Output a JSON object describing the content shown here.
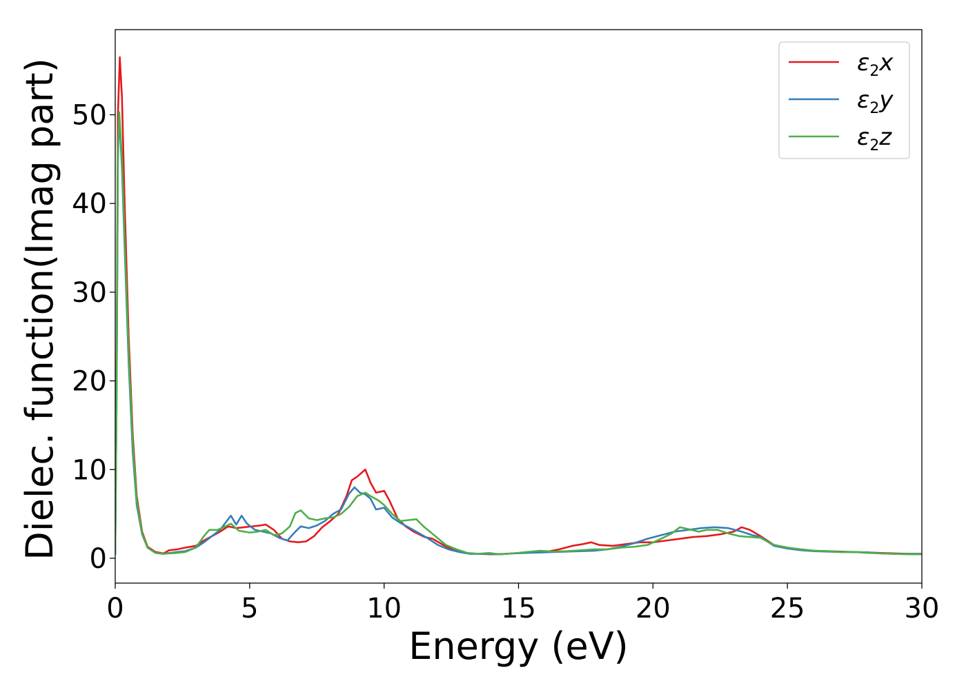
{
  "chart_data": {
    "type": "line",
    "title": "",
    "xlabel": "Energy (eV)",
    "ylabel": "Dielec. function(Imag part)",
    "xlim": [
      0,
      30
    ],
    "ylim": [
      -2.8,
      59.6
    ],
    "xticks": [
      0,
      5,
      10,
      15,
      20,
      25,
      30
    ],
    "yticks": [
      0,
      10,
      20,
      30,
      40,
      50
    ],
    "grid": false,
    "legend_position": "top-right",
    "colors": {
      "x": "#e41a1c",
      "y": "#377eb8",
      "z": "#4daf4a"
    },
    "legend": [
      {
        "key": "x",
        "symbol": "ε",
        "sub": "2",
        "comp": "x"
      },
      {
        "key": "y",
        "symbol": "ε",
        "sub": "2",
        "comp": "y"
      },
      {
        "key": "z",
        "symbol": "ε",
        "sub": "2",
        "comp": "z"
      }
    ],
    "series": [
      {
        "name": "ε2x",
        "key": "x",
        "points": [
          [
            0,
            0.5
          ],
          [
            0.05,
            20
          ],
          [
            0.1,
            50
          ],
          [
            0.17,
            56.5
          ],
          [
            0.25,
            52
          ],
          [
            0.35,
            40
          ],
          [
            0.5,
            25
          ],
          [
            0.65,
            14
          ],
          [
            0.8,
            7
          ],
          [
            1.0,
            3
          ],
          [
            1.2,
            1.3
          ],
          [
            1.5,
            0.7
          ],
          [
            1.8,
            0.55
          ],
          [
            2.0,
            0.9
          ],
          [
            2.3,
            1.0
          ],
          [
            2.6,
            1.2
          ],
          [
            3.0,
            1.4
          ],
          [
            3.3,
            2.0
          ],
          [
            3.6,
            2.5
          ],
          [
            3.9,
            3.0
          ],
          [
            4.2,
            3.6
          ],
          [
            4.5,
            3.4
          ],
          [
            4.8,
            3.5
          ],
          [
            5.1,
            3.6
          ],
          [
            5.4,
            3.7
          ],
          [
            5.6,
            3.8
          ],
          [
            5.9,
            3.2
          ],
          [
            6.2,
            2.2
          ],
          [
            6.5,
            1.9
          ],
          [
            6.8,
            1.8
          ],
          [
            7.1,
            1.9
          ],
          [
            7.4,
            2.5
          ],
          [
            7.7,
            3.5
          ],
          [
            8.0,
            4.2
          ],
          [
            8.3,
            5.0
          ],
          [
            8.6,
            7.0
          ],
          [
            8.8,
            8.8
          ],
          [
            9.0,
            9.2
          ],
          [
            9.3,
            10.0
          ],
          [
            9.5,
            8.5
          ],
          [
            9.7,
            7.4
          ],
          [
            10.0,
            7.6
          ],
          [
            10.2,
            6.5
          ],
          [
            10.5,
            4.5
          ],
          [
            10.8,
            3.6
          ],
          [
            11.1,
            3.0
          ],
          [
            11.5,
            2.4
          ],
          [
            11.8,
            2.2
          ],
          [
            12.2,
            1.5
          ],
          [
            12.6,
            0.9
          ],
          [
            13.0,
            0.6
          ],
          [
            13.5,
            0.5
          ],
          [
            14.0,
            0.45
          ],
          [
            14.5,
            0.5
          ],
          [
            15.0,
            0.6
          ],
          [
            15.5,
            0.65
          ],
          [
            16.0,
            0.7
          ],
          [
            16.5,
            1.0
          ],
          [
            17.0,
            1.4
          ],
          [
            17.4,
            1.6
          ],
          [
            17.7,
            1.8
          ],
          [
            18.0,
            1.5
          ],
          [
            18.5,
            1.4
          ],
          [
            19.0,
            1.6
          ],
          [
            19.5,
            1.8
          ],
          [
            20.0,
            1.8
          ],
          [
            20.5,
            2.0
          ],
          [
            21.0,
            2.2
          ],
          [
            21.5,
            2.4
          ],
          [
            22.0,
            2.5
          ],
          [
            22.5,
            2.7
          ],
          [
            23.0,
            3.0
          ],
          [
            23.3,
            3.5
          ],
          [
            23.6,
            3.2
          ],
          [
            24.0,
            2.5
          ],
          [
            24.5,
            1.5
          ],
          [
            25.0,
            1.2
          ],
          [
            25.5,
            1.0
          ],
          [
            26.0,
            0.85
          ],
          [
            26.5,
            0.8
          ],
          [
            27.0,
            0.75
          ],
          [
            27.5,
            0.7
          ],
          [
            28.0,
            0.65
          ],
          [
            28.5,
            0.6
          ],
          [
            29.0,
            0.55
          ],
          [
            29.5,
            0.5
          ],
          [
            30.0,
            0.5
          ]
        ]
      },
      {
        "name": "ε2y",
        "key": "y",
        "points": [
          [
            0,
            0.5
          ],
          [
            0.05,
            18
          ],
          [
            0.1,
            45
          ],
          [
            0.15,
            50
          ],
          [
            0.25,
            44
          ],
          [
            0.35,
            35
          ],
          [
            0.5,
            22
          ],
          [
            0.65,
            12
          ],
          [
            0.8,
            6
          ],
          [
            1.0,
            2.7
          ],
          [
            1.2,
            1.2
          ],
          [
            1.5,
            0.6
          ],
          [
            1.8,
            0.5
          ],
          [
            2.0,
            0.6
          ],
          [
            2.3,
            0.7
          ],
          [
            2.6,
            0.8
          ],
          [
            3.0,
            1.2
          ],
          [
            3.3,
            1.8
          ],
          [
            3.6,
            2.5
          ],
          [
            3.9,
            3.2
          ],
          [
            4.1,
            4.0
          ],
          [
            4.3,
            4.8
          ],
          [
            4.5,
            3.8
          ],
          [
            4.7,
            4.8
          ],
          [
            4.9,
            3.9
          ],
          [
            5.2,
            3.2
          ],
          [
            5.5,
            3.0
          ],
          [
            5.8,
            2.8
          ],
          [
            6.1,
            2.3
          ],
          [
            6.4,
            2.0
          ],
          [
            6.7,
            3.0
          ],
          [
            6.9,
            3.6
          ],
          [
            7.2,
            3.4
          ],
          [
            7.5,
            3.7
          ],
          [
            7.8,
            4.2
          ],
          [
            8.1,
            5.0
          ],
          [
            8.4,
            5.5
          ],
          [
            8.7,
            7.3
          ],
          [
            8.9,
            8.0
          ],
          [
            9.1,
            7.4
          ],
          [
            9.3,
            7.2
          ],
          [
            9.5,
            6.7
          ],
          [
            9.7,
            5.5
          ],
          [
            10.0,
            5.7
          ],
          [
            10.3,
            4.6
          ],
          [
            10.6,
            4.0
          ],
          [
            10.9,
            3.5
          ],
          [
            11.2,
            3.0
          ],
          [
            11.6,
            2.3
          ],
          [
            12.0,
            1.5
          ],
          [
            12.4,
            1.0
          ],
          [
            12.8,
            0.7
          ],
          [
            13.2,
            0.5
          ],
          [
            13.8,
            0.5
          ],
          [
            14.3,
            0.45
          ],
          [
            14.8,
            0.55
          ],
          [
            15.3,
            0.6
          ],
          [
            15.8,
            0.65
          ],
          [
            16.3,
            0.7
          ],
          [
            16.8,
            0.75
          ],
          [
            17.3,
            0.8
          ],
          [
            17.8,
            0.85
          ],
          [
            18.3,
            1.0
          ],
          [
            18.8,
            1.3
          ],
          [
            19.3,
            1.7
          ],
          [
            19.8,
            2.2
          ],
          [
            20.3,
            2.6
          ],
          [
            20.8,
            3.0
          ],
          [
            21.3,
            3.2
          ],
          [
            21.8,
            3.4
          ],
          [
            22.3,
            3.5
          ],
          [
            22.8,
            3.4
          ],
          [
            23.3,
            3.0
          ],
          [
            23.7,
            2.6
          ],
          [
            24.0,
            2.4
          ],
          [
            24.5,
            1.4
          ],
          [
            25.0,
            1.1
          ],
          [
            25.5,
            0.9
          ],
          [
            26.0,
            0.8
          ],
          [
            26.5,
            0.75
          ],
          [
            27.0,
            0.7
          ],
          [
            27.5,
            0.7
          ],
          [
            28.0,
            0.65
          ],
          [
            28.5,
            0.55
          ],
          [
            29.0,
            0.5
          ],
          [
            29.5,
            0.5
          ],
          [
            30.0,
            0.5
          ]
        ]
      },
      {
        "name": "ε2z",
        "key": "z",
        "points": [
          [
            0,
            0.5
          ],
          [
            0.05,
            18
          ],
          [
            0.1,
            46
          ],
          [
            0.15,
            50.3
          ],
          [
            0.25,
            45
          ],
          [
            0.35,
            36
          ],
          [
            0.5,
            23
          ],
          [
            0.65,
            13
          ],
          [
            0.8,
            6.5
          ],
          [
            1.0,
            2.8
          ],
          [
            1.2,
            1.2
          ],
          [
            1.5,
            0.6
          ],
          [
            1.8,
            0.5
          ],
          [
            2.0,
            0.55
          ],
          [
            2.3,
            0.6
          ],
          [
            2.6,
            0.7
          ],
          [
            3.0,
            1.2
          ],
          [
            3.3,
            2.5
          ],
          [
            3.5,
            3.2
          ],
          [
            3.8,
            3.2
          ],
          [
            4.1,
            3.6
          ],
          [
            4.3,
            3.9
          ],
          [
            4.6,
            3.1
          ],
          [
            5.0,
            2.9
          ],
          [
            5.3,
            3.0
          ],
          [
            5.6,
            3.2
          ],
          [
            5.9,
            2.6
          ],
          [
            6.2,
            2.8
          ],
          [
            6.5,
            3.6
          ],
          [
            6.7,
            5.1
          ],
          [
            6.9,
            5.4
          ],
          [
            7.2,
            4.5
          ],
          [
            7.5,
            4.3
          ],
          [
            7.8,
            4.5
          ],
          [
            8.1,
            4.6
          ],
          [
            8.4,
            5.0
          ],
          [
            8.7,
            5.8
          ],
          [
            9.0,
            7.0
          ],
          [
            9.3,
            7.4
          ],
          [
            9.5,
            7.0
          ],
          [
            9.8,
            6.5
          ],
          [
            10.0,
            6.0
          ],
          [
            10.3,
            5.0
          ],
          [
            10.6,
            4.2
          ],
          [
            10.9,
            4.3
          ],
          [
            11.2,
            4.4
          ],
          [
            11.5,
            3.5
          ],
          [
            11.9,
            2.5
          ],
          [
            12.3,
            1.5
          ],
          [
            12.7,
            1.0
          ],
          [
            13.1,
            0.6
          ],
          [
            13.5,
            0.5
          ],
          [
            13.9,
            0.6
          ],
          [
            14.3,
            0.45
          ],
          [
            14.8,
            0.55
          ],
          [
            15.3,
            0.7
          ],
          [
            15.8,
            0.85
          ],
          [
            16.3,
            0.75
          ],
          [
            16.8,
            0.8
          ],
          [
            17.3,
            0.9
          ],
          [
            17.8,
            1.0
          ],
          [
            18.3,
            1.0
          ],
          [
            18.8,
            1.2
          ],
          [
            19.3,
            1.3
          ],
          [
            19.8,
            1.5
          ],
          [
            20.3,
            2.2
          ],
          [
            20.7,
            2.8
          ],
          [
            21.0,
            3.5
          ],
          [
            21.3,
            3.3
          ],
          [
            21.7,
            3.0
          ],
          [
            22.0,
            3.2
          ],
          [
            22.4,
            3.2
          ],
          [
            22.8,
            2.8
          ],
          [
            23.2,
            2.5
          ],
          [
            23.6,
            2.4
          ],
          [
            24.0,
            2.3
          ],
          [
            24.5,
            1.5
          ],
          [
            25.0,
            1.2
          ],
          [
            25.5,
            1.0
          ],
          [
            26.0,
            0.85
          ],
          [
            26.5,
            0.8
          ],
          [
            27.0,
            0.7
          ],
          [
            27.5,
            0.7
          ],
          [
            28.0,
            0.6
          ],
          [
            28.5,
            0.55
          ],
          [
            29.0,
            0.5
          ],
          [
            29.5,
            0.45
          ],
          [
            30.0,
            0.45
          ]
        ]
      }
    ]
  }
}
